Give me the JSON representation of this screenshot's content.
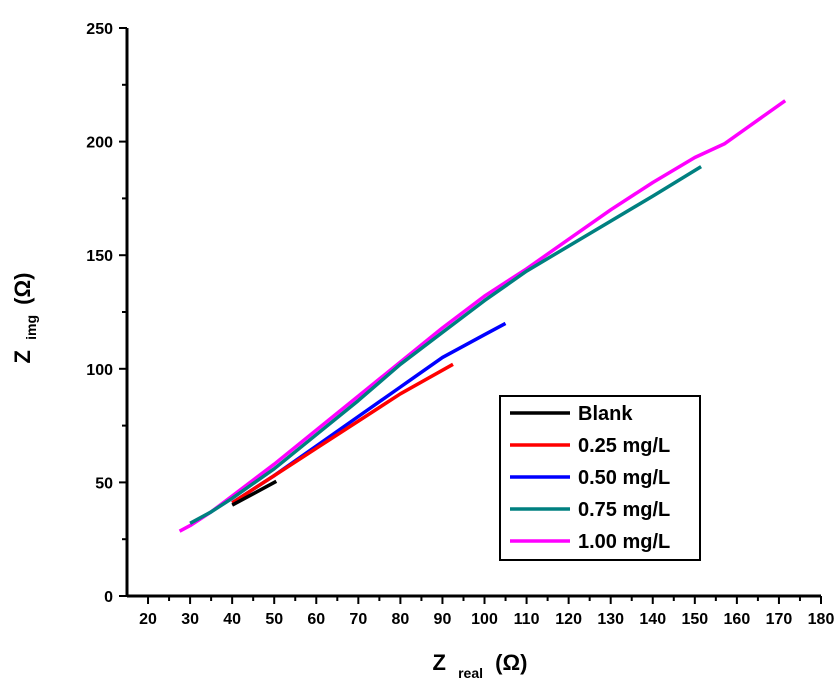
{
  "chart_data": {
    "type": "line",
    "title": "",
    "xlabel": {
      "main": "Z",
      "sub": "real",
      "unit": "(Ω)"
    },
    "ylabel": {
      "main": "Z",
      "sub": "img",
      "unit": "(Ω)"
    },
    "xlim": [
      15,
      180
    ],
    "ylim": [
      0,
      250
    ],
    "xticks": [
      20,
      30,
      40,
      50,
      60,
      70,
      80,
      90,
      100,
      110,
      120,
      130,
      140,
      150,
      160,
      170,
      180
    ],
    "yticks": [
      0,
      50,
      100,
      150,
      200,
      250
    ],
    "grid": false,
    "legend_position": "bottom-right",
    "series": [
      {
        "name": "Blank",
        "color": "#000000",
        "x": [
          40,
          45,
          50.5
        ],
        "y": [
          40,
          45,
          50.5
        ]
      },
      {
        "name": "0.25 mg/L",
        "color": "#ff0000",
        "x": [
          40,
          50,
          60,
          70,
          80,
          92.5
        ],
        "y": [
          41,
          53,
          65,
          77,
          89,
          102
        ]
      },
      {
        "name": "0.50 mg/L",
        "color": "#0000ff",
        "x": [
          40,
          50,
          60,
          70,
          80,
          90,
          100,
          105
        ],
        "y": [
          41,
          53,
          66,
          79,
          92,
          105,
          115,
          120
        ]
      },
      {
        "name": "0.75 mg/L",
        "color": "#008080",
        "x": [
          30,
          35,
          40,
          50,
          60,
          70,
          80,
          90,
          100,
          110,
          120,
          130,
          140,
          151.5
        ],
        "y": [
          32,
          37,
          43,
          56,
          71,
          86,
          102,
          116,
          130,
          143,
          154,
          165,
          176,
          189
        ]
      },
      {
        "name": "1.00 mg/L",
        "color": "#ff00ff",
        "x": [
          27.5,
          30,
          35,
          40,
          50,
          60,
          70,
          80,
          88,
          90,
          100,
          110,
          120,
          130,
          140,
          150,
          157,
          171.5
        ],
        "y": [
          28.5,
          31,
          37,
          44,
          58,
          73,
          88,
          103,
          115,
          118,
          132,
          144,
          157,
          170,
          182,
          193,
          199,
          218
        ]
      }
    ]
  }
}
